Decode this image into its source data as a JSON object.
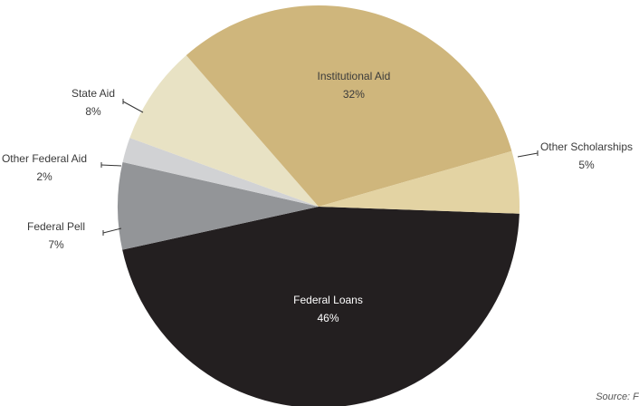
{
  "chart_data": {
    "type": "pie",
    "categories": [
      "Federal Loans",
      "Federal Pell",
      "Other Federal Aid",
      "State Aid",
      "Institutional Aid",
      "Other Scholarships"
    ],
    "values": [
      46,
      7,
      2,
      8,
      32,
      5
    ],
    "value_labels": [
      "46%",
      "7%",
      "2%",
      "8%",
      "32%",
      "5%"
    ],
    "colors": [
      "#231f20",
      "#939598",
      "#d1d2d4",
      "#e8e2c4",
      "#cfb67c",
      "#e3d3a3"
    ],
    "title": "",
    "legend": "none",
    "source_text": "Source: Fir"
  }
}
